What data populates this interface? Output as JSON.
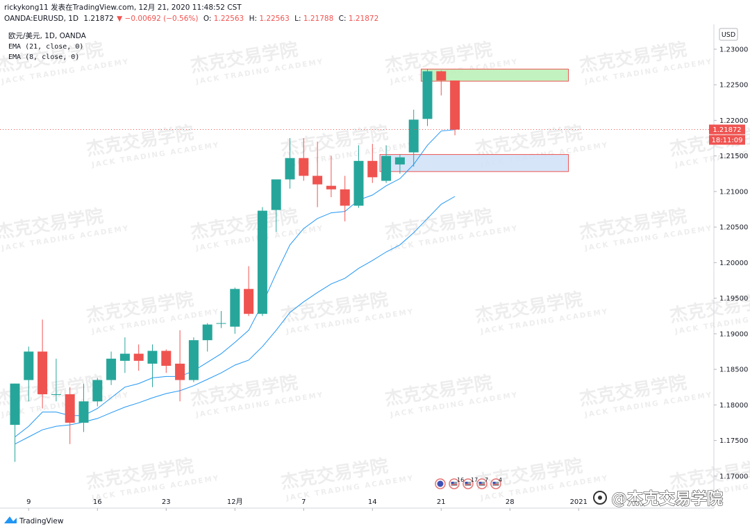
{
  "header": {
    "publish_line": "rickykong11 发表在TradingView.com, 12月 21, 2020 11:48:52 CST",
    "symbol": "OANDA:EURUSD, 1D",
    "last": "1.21872",
    "change": "▼ −0.00692 (−0.56%)",
    "ohlc": [
      {
        "label": "O:",
        "value": "1.22563"
      },
      {
        "label": "H:",
        "value": "1.22563"
      },
      {
        "label": "L:",
        "value": "1.21788"
      },
      {
        "label": "C:",
        "value": "1.21872"
      }
    ]
  },
  "legend": {
    "line1": "欧元/美元, 1D, OANDA",
    "line2": "EMA (21, close, 0)",
    "line3": "EMA (8, close, 0)"
  },
  "currency_label": "USD",
  "price_tag": "1.21872",
  "countdown_tag": "18:11:09",
  "events": [
    {
      "icon": "globe-icon",
      "count": ""
    },
    {
      "icon": "flag-icon",
      "count": "16"
    },
    {
      "icon": "flag-icon",
      "count": "17"
    },
    {
      "icon": "flag-icon",
      "count": "7"
    },
    {
      "icon": "flag-icon",
      "count": "4"
    }
  ],
  "watermark": {
    "cn": "杰克交易学院",
    "en": "JACK TRADING ACADEMY"
  },
  "corner_brand": "@杰克交易学院",
  "footer_brand": "TradingView",
  "colors": {
    "up": "#26a69a",
    "down": "#ef5350",
    "ema": "#2196f3",
    "supply": "#b7f0b5",
    "demand": "#cfe0f7"
  },
  "chart_data": {
    "type": "candlestick",
    "symbol": "EURUSD",
    "timeframe": "1D",
    "ylim": [
      1.1655,
      1.2335
    ],
    "y_ticks": [
      1.17,
      1.175,
      1.18,
      1.185,
      1.19,
      1.195,
      1.2,
      1.205,
      1.21,
      1.215,
      1.22,
      1.225,
      1.23
    ],
    "y_tick_labels": [
      "1.17000",
      "1.17500",
      "1.18000",
      "1.18500",
      "1.19000",
      "1.19500",
      "1.20000",
      "1.20500",
      "1.21000",
      "1.21500",
      "1.22000",
      "1.22500",
      "1.23000"
    ],
    "x_ticks": [
      {
        "index": 1,
        "label": "9"
      },
      {
        "index": 6,
        "label": "16"
      },
      {
        "index": 11,
        "label": "23"
      },
      {
        "index": 16,
        "label": "12月"
      },
      {
        "index": 21,
        "label": "7"
      },
      {
        "index": 26,
        "label": "14"
      },
      {
        "index": 31,
        "label": "21"
      },
      {
        "index": 36,
        "label": "28"
      },
      {
        "index": 41,
        "label": "2021"
      }
    ],
    "candles": [
      {
        "o": 1.1772,
        "h": 1.183,
        "l": 1.172,
        "c": 1.183
      },
      {
        "o": 1.1835,
        "h": 1.1882,
        "l": 1.1805,
        "c": 1.1875
      },
      {
        "o": 1.1875,
        "h": 1.192,
        "l": 1.1795,
        "c": 1.1815
      },
      {
        "o": 1.1815,
        "h": 1.1865,
        "l": 1.1805,
        "c": 1.1815
      },
      {
        "o": 1.1815,
        "h": 1.1825,
        "l": 1.1745,
        "c": 1.1775
      },
      {
        "o": 1.1775,
        "h": 1.183,
        "l": 1.1762,
        "c": 1.1805
      },
      {
        "o": 1.1805,
        "h": 1.1838,
        "l": 1.1798,
        "c": 1.1835
      },
      {
        "o": 1.1835,
        "h": 1.1875,
        "l": 1.1828,
        "c": 1.1865
      },
      {
        "o": 1.1862,
        "h": 1.1895,
        "l": 1.1845,
        "c": 1.1872
      },
      {
        "o": 1.1872,
        "h": 1.1885,
        "l": 1.1848,
        "c": 1.1862
      },
      {
        "o": 1.1858,
        "h": 1.1885,
        "l": 1.1825,
        "c": 1.1876
      },
      {
        "o": 1.1876,
        "h": 1.1878,
        "l": 1.1845,
        "c": 1.1855
      },
      {
        "o": 1.1858,
        "h": 1.1905,
        "l": 1.1805,
        "c": 1.1835
      },
      {
        "o": 1.1835,
        "h": 1.1895,
        "l": 1.1832,
        "c": 1.1891
      },
      {
        "o": 1.1891,
        "h": 1.1915,
        "l": 1.1875,
        "c": 1.1913
      },
      {
        "o": 1.1914,
        "h": 1.1932,
        "l": 1.1908,
        "c": 1.1915
      },
      {
        "o": 1.191,
        "h": 1.1965,
        "l": 1.19,
        "c": 1.1963
      },
      {
        "o": 1.1963,
        "h": 1.1995,
        "l": 1.1925,
        "c": 1.1928
      },
      {
        "o": 1.1928,
        "h": 1.2078,
        "l": 1.1925,
        "c": 1.2073
      },
      {
        "o": 1.2074,
        "h": 1.2115,
        "l": 1.2043,
        "c": 1.2117
      },
      {
        "o": 1.2117,
        "h": 1.2175,
        "l": 1.2104,
        "c": 1.2147
      },
      {
        "o": 1.2147,
        "h": 1.2175,
        "l": 1.2115,
        "c": 1.2122
      },
      {
        "o": 1.2122,
        "h": 1.217,
        "l": 1.2078,
        "c": 1.211
      },
      {
        "o": 1.2108,
        "h": 1.215,
        "l": 1.2092,
        "c": 1.2103
      },
      {
        "o": 1.2103,
        "h": 1.2122,
        "l": 1.2058,
        "c": 1.208
      },
      {
        "o": 1.208,
        "h": 1.2165,
        "l": 1.2077,
        "c": 1.2143
      },
      {
        "o": 1.2143,
        "h": 1.2167,
        "l": 1.2112,
        "c": 1.212
      },
      {
        "o": 1.2115,
        "h": 1.2165,
        "l": 1.2112,
        "c": 1.215
      },
      {
        "o": 1.2138,
        "h": 1.2152,
        "l": 1.2125,
        "c": 1.2148
      },
      {
        "o": 1.2155,
        "h": 1.2215,
        "l": 1.2135,
        "c": 1.2201
      },
      {
        "o": 1.2202,
        "h": 1.2272,
        "l": 1.2192,
        "c": 1.2269
      },
      {
        "o": 1.2269,
        "h": 1.227,
        "l": 1.2235,
        "c": 1.2256
      },
      {
        "o": 1.2256,
        "h": 1.2256,
        "l": 1.2179,
        "c": 1.2187
      }
    ],
    "series": [
      {
        "name": "EMA (8, close, 0)",
        "color": "#2196f3",
        "values": [
          1.1755,
          1.177,
          1.179,
          1.179,
          1.1785,
          1.1785,
          1.1795,
          1.181,
          1.1825,
          1.183,
          1.1838,
          1.184,
          1.184,
          1.1848,
          1.186,
          1.1872,
          1.1888,
          1.1905,
          1.1942,
          1.1985,
          1.2025,
          1.2048,
          1.2062,
          1.207,
          1.2072,
          1.2088,
          1.2095,
          1.2108,
          1.2118,
          1.2138,
          1.2165,
          1.2185,
          1.2187
        ]
      },
      {
        "name": "EMA (21, close, 0)",
        "color": "#2196f3",
        "values": [
          1.1745,
          1.1755,
          1.1765,
          1.177,
          1.1772,
          1.1776,
          1.1781,
          1.1789,
          1.1797,
          1.1803,
          1.181,
          1.1816,
          1.182,
          1.1827,
          1.1836,
          1.1845,
          1.1856,
          1.1863,
          1.1882,
          1.1905,
          1.193,
          1.1945,
          1.1958,
          1.197,
          1.1978,
          1.1992,
          1.2003,
          1.2015,
          1.2025,
          1.2042,
          1.2062,
          1.2082,
          1.2093
        ]
      }
    ],
    "zones": [
      {
        "name": "supply",
        "y1": 1.2255,
        "y2": 1.2272,
        "from_index": 30,
        "to_index": 40
      },
      {
        "name": "demand",
        "y1": 1.2128,
        "y2": 1.2152,
        "from_index": 27,
        "to_index": 40
      }
    ],
    "last_price": 1.21872,
    "grid": false,
    "legend_position": "top-left"
  }
}
